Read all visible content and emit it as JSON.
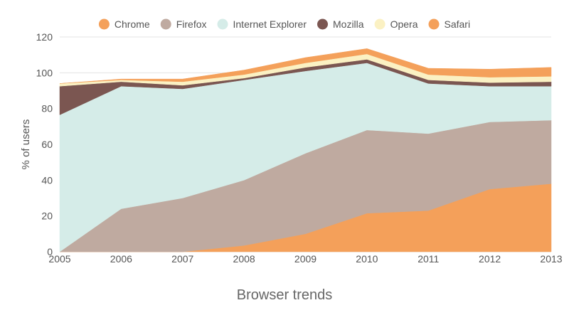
{
  "chart_data": {
    "type": "area",
    "stacked": true,
    "x": [
      2005,
      2006,
      2007,
      2008,
      2009,
      2010,
      2011,
      2012,
      2013
    ],
    "xlabel": "Browser trends",
    "ylabel": "% of users",
    "ylim": [
      0,
      120
    ],
    "yticks": [
      0,
      20,
      40,
      60,
      80,
      100,
      120
    ],
    "grid": true,
    "legend": "top",
    "series": [
      {
        "name": "Chrome",
        "color": "#f4a05a",
        "values": [
          0,
          0,
          0,
          3.5,
          10,
          21.5,
          23,
          35,
          38
        ]
      },
      {
        "name": "Firefox",
        "color": "#bfaaa0",
        "values": [
          0,
          24,
          30,
          36.5,
          45,
          46.5,
          43,
          37.5,
          35.5
        ]
      },
      {
        "name": "Internet Explorer",
        "color": "#d5ece8",
        "values": [
          76.5,
          68.5,
          61,
          56,
          46,
          37.5,
          28,
          20,
          19
        ]
      },
      {
        "name": "Mozilla",
        "color": "#7b5651",
        "values": [
          16,
          2.5,
          2,
          1,
          2,
          2,
          2,
          2,
          2.5
        ]
      },
      {
        "name": "Opera",
        "color": "#fbf1c3",
        "values": [
          1.5,
          1,
          2,
          2,
          2.5,
          3,
          3,
          3,
          3
        ]
      },
      {
        "name": "Safari",
        "color": "#f4a05a",
        "values": [
          0,
          0.5,
          1.5,
          2.5,
          3,
          3,
          3.5,
          4.5,
          5
        ]
      }
    ]
  }
}
